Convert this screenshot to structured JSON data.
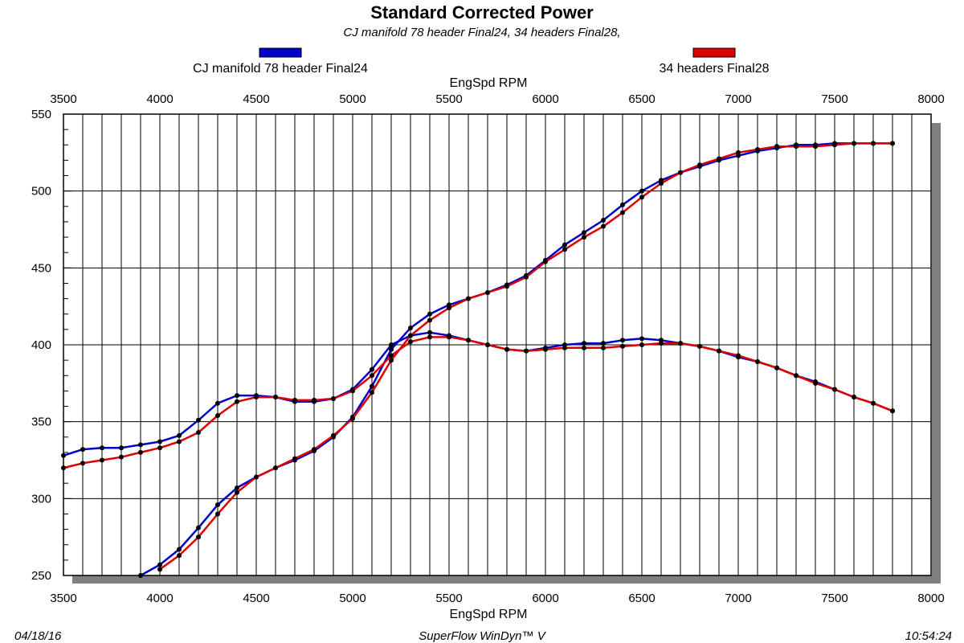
{
  "chart_data": {
    "type": "line",
    "title": "Standard Corrected Power",
    "subtitle": "CJ manifold 78 header Final24, 34 headers Final28,",
    "xlabel": "EngSpd RPM",
    "ylabel": "",
    "xlim": [
      3500,
      8000
    ],
    "ylim": [
      250,
      550
    ],
    "x_ticks": [
      3500,
      4000,
      4500,
      5000,
      5500,
      6000,
      6500,
      7000,
      7500,
      8000
    ],
    "y_ticks": [
      250,
      300,
      350,
      400,
      450,
      500,
      550
    ],
    "grid": true,
    "legend_position": "top",
    "colors": {
      "blue": "#0000cc",
      "red": "#dd0000",
      "shadow": "#808080",
      "marker": "#000000"
    },
    "series": [
      {
        "name": "CJ manifold 78 header Final24",
        "color": "#0000cc",
        "curves": [
          {
            "x": [
              3500,
              3600,
              3700,
              3800,
              3900,
              4000,
              4100,
              4200,
              4300,
              4400,
              4500,
              4600,
              4700,
              4800,
              4900,
              5000,
              5100,
              5200,
              5300,
              5400,
              5500,
              5600,
              5700,
              5800,
              5900,
              6000,
              6100,
              6200,
              6300,
              6400,
              6500,
              6600,
              6700,
              6800,
              6900,
              7000,
              7100,
              7200,
              7300,
              7400,
              7500,
              7600,
              7700,
              7800
            ],
            "y": [
              328,
              332,
              333,
              333,
              335,
              337,
              341,
              351,
              362,
              367,
              367,
              366,
              363,
              363,
              365,
              371,
              384,
              400,
              406,
              408,
              406,
              403,
              400,
              397,
              396,
              398,
              400,
              401,
              401,
              403,
              404,
              403,
              401,
              399,
              396,
              392,
              389,
              385,
              380,
              376,
              371,
              366,
              362,
              357
            ]
          },
          {
            "x": [
              3900,
              4000,
              4100,
              4200,
              4300,
              4400,
              4500,
              4600,
              4700,
              4800,
              4900,
              5000,
              5100,
              5200,
              5300,
              5400,
              5500,
              5600,
              5700,
              5800,
              5900,
              6000,
              6100,
              6200,
              6300,
              6400,
              6500,
              6600,
              6700,
              6800,
              6900,
              7000,
              7100,
              7200,
              7300,
              7400,
              7500,
              7600,
              7700,
              7800
            ],
            "y": [
              250,
              257,
              267,
              281,
              296,
              307,
              314,
              320,
              325,
              331,
              340,
              353,
              373,
              397,
              411,
              420,
              426,
              430,
              434,
              439,
              445,
              455,
              465,
              473,
              481,
              491,
              500,
              507,
              512,
              516,
              520,
              523,
              526,
              528,
              530,
              530,
              531,
              531,
              531,
              531
            ]
          }
        ]
      },
      {
        "name": "34 headers Final28",
        "color": "#dd0000",
        "curves": [
          {
            "x": [
              3500,
              3600,
              3700,
              3800,
              3900,
              4000,
              4100,
              4200,
              4300,
              4400,
              4500,
              4600,
              4700,
              4800,
              4900,
              5000,
              5100,
              5200,
              5300,
              5400,
              5500,
              5600,
              5700,
              5800,
              5900,
              6000,
              6100,
              6200,
              6300,
              6400,
              6500,
              6600,
              6700,
              6800,
              6900,
              7000,
              7100,
              7200,
              7300,
              7400,
              7500,
              7600,
              7700,
              7800
            ],
            "y": [
              320,
              323,
              325,
              327,
              330,
              333,
              337,
              343,
              354,
              363,
              366,
              366,
              364,
              364,
              365,
              370,
              380,
              393,
              402,
              405,
              405,
              403,
              400,
              397,
              396,
              397,
              398,
              398,
              398,
              399,
              400,
              401,
              401,
              399,
              396,
              393,
              389,
              385,
              380,
              375,
              371,
              366,
              362,
              357
            ]
          },
          {
            "x": [
              4000,
              4100,
              4200,
              4300,
              4400,
              4500,
              4600,
              4700,
              4800,
              4900,
              5000,
              5100,
              5200,
              5300,
              5400,
              5500,
              5600,
              5700,
              5800,
              5900,
              6000,
              6100,
              6200,
              6300,
              6400,
              6500,
              6600,
              6700,
              6800,
              6900,
              7000,
              7100,
              7200,
              7300,
              7400,
              7500,
              7600,
              7700,
              7800
            ],
            "y": [
              254,
              263,
              275,
              290,
              304,
              314,
              320,
              326,
              332,
              341,
              352,
              369,
              390,
              406,
              416,
              424,
              430,
              434,
              438,
              444,
              454,
              462,
              470,
              477,
              486,
              496,
              505,
              512,
              517,
              521,
              525,
              527,
              529,
              529,
              529,
              530,
              531,
              531,
              531
            ]
          }
        ]
      }
    ]
  },
  "footer": {
    "date": "04/18/16",
    "software": "SuperFlow WinDyn™ V",
    "time": "10:54:24"
  }
}
